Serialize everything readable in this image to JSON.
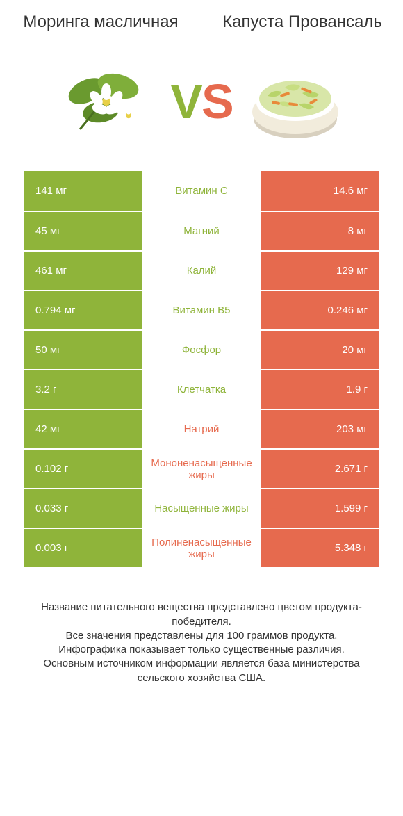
{
  "colors": {
    "left": "#8fb43a",
    "right": "#e66a4e",
    "white": "#ffffff",
    "text": "#333333"
  },
  "header": {
    "left_title": "Моринга масличная",
    "right_title": "Капуста Провансаль",
    "vs_v": "V",
    "vs_s": "S"
  },
  "rows": [
    {
      "nutrient": "Витамин C",
      "left": "141 мг",
      "right": "14.6 мг",
      "winner": "left"
    },
    {
      "nutrient": "Магний",
      "left": "45 мг",
      "right": "8 мг",
      "winner": "left"
    },
    {
      "nutrient": "Калий",
      "left": "461 мг",
      "right": "129 мг",
      "winner": "left"
    },
    {
      "nutrient": "Витамин B5",
      "left": "0.794 мг",
      "right": "0.246 мг",
      "winner": "left"
    },
    {
      "nutrient": "Фосфор",
      "left": "50 мг",
      "right": "20 мг",
      "winner": "left"
    },
    {
      "nutrient": "Клетчатка",
      "left": "3.2 г",
      "right": "1.9 г",
      "winner": "left"
    },
    {
      "nutrient": "Натрий",
      "left": "42 мг",
      "right": "203 мг",
      "winner": "right"
    },
    {
      "nutrient": "Мононенасыщенные жиры",
      "left": "0.102 г",
      "right": "2.671 г",
      "winner": "right"
    },
    {
      "nutrient": "Насыщенные жиры",
      "left": "0.033 г",
      "right": "1.599 г",
      "winner": "left"
    },
    {
      "nutrient": "Полиненасыщенные жиры",
      "left": "0.003 г",
      "right": "5.348 г",
      "winner": "right"
    }
  ],
  "footnote": {
    "l1": "Название питательного вещества представлено цветом продукта-победителя.",
    "l2": "Все значения представлены для 100 граммов продукта.",
    "l3": "Инфографика показывает только существенные различия.",
    "l4": "Основным источником информации является база министерства сельского хозяйства США."
  }
}
